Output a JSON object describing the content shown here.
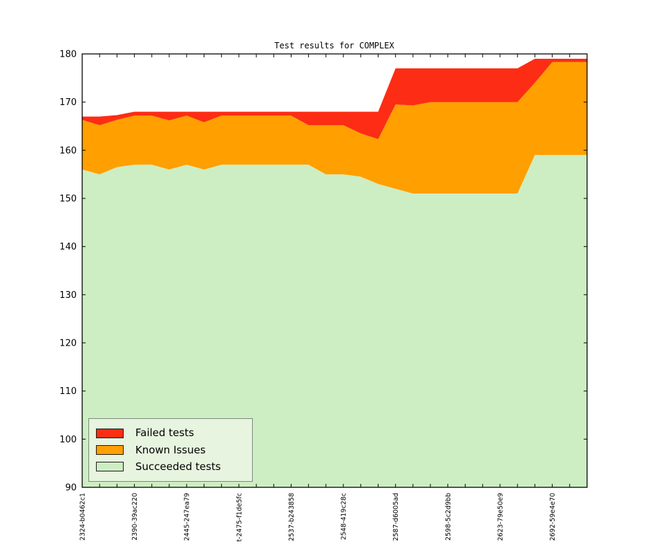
{
  "figure": {
    "title": "Test results for COMPLEX"
  },
  "colors": {
    "failed": "#fc2d14",
    "known": "#ff9f00",
    "succeeded": "#cdeec2",
    "legend_bg": "#e7f4df",
    "axis": "#000000",
    "background": "#ffffff"
  },
  "legend": {
    "items": [
      {
        "label": "Failed tests",
        "color": "#fc2d14"
      },
      {
        "label": "Known Issues",
        "color": "#ff9f00"
      },
      {
        "label": "Succeeded tests",
        "color": "#cdeec2"
      }
    ]
  },
  "chart_data": {
    "type": "area",
    "stacked": true,
    "title": "Test results for COMPLEX",
    "xlabel": "",
    "ylabel": "",
    "ylim": [
      90,
      180
    ],
    "grid": false,
    "legend_position": "lower left",
    "yticks": [
      90,
      100,
      110,
      120,
      130,
      140,
      150,
      160,
      170,
      180
    ],
    "x_tick_labels": [
      {
        "index": 0,
        "text": "2324-b0462c1"
      },
      {
        "index": 3,
        "text": "2390-39ac220"
      },
      {
        "index": 6,
        "text": "2445-247ea79"
      },
      {
        "index": 9,
        "text": "t-2475-f1de5fc"
      },
      {
        "index": 12,
        "text": "2537-b243858"
      },
      {
        "index": 15,
        "text": "2548-419c28c"
      },
      {
        "index": 18,
        "text": "2587-d6005ad"
      },
      {
        "index": 21,
        "text": "2598-5c2d9bb"
      },
      {
        "index": 24,
        "text": "2623-79e50e9"
      },
      {
        "index": 27,
        "text": "2692-59e4e70"
      }
    ],
    "series": [
      {
        "name": "Succeeded tests",
        "color": "#cdeec2",
        "values": [
          156,
          155,
          156.5,
          157,
          157,
          156,
          157,
          156,
          157,
          157,
          157,
          157,
          157,
          157,
          155,
          155,
          154.5,
          153,
          152,
          151,
          151,
          151,
          151,
          151,
          151,
          151,
          159,
          159,
          159,
          159
        ]
      },
      {
        "name": "Known Issues",
        "color": "#ff9f00",
        "values": [
          10.3,
          10.2,
          9.8,
          10.2,
          10.2,
          10.2,
          10.2,
          9.8,
          10.2,
          10.2,
          10.2,
          10.2,
          10.2,
          8.2,
          10.2,
          10.2,
          9,
          9.3,
          17.5,
          18.3,
          19,
          19,
          19,
          19,
          19,
          19,
          15,
          19.3,
          19.3,
          19.3
        ]
      },
      {
        "name": "Failed tests",
        "color": "#fc2d14",
        "values": [
          0.7,
          1.8,
          1,
          0.8,
          0.8,
          1.8,
          0.8,
          2.2,
          0.8,
          0.8,
          0.8,
          0.8,
          0.8,
          2.8,
          2.8,
          2.8,
          4.5,
          5.7,
          7.5,
          7.7,
          7,
          7,
          7,
          7,
          7,
          7,
          5,
          0.7,
          0.7,
          0.7
        ]
      }
    ]
  }
}
